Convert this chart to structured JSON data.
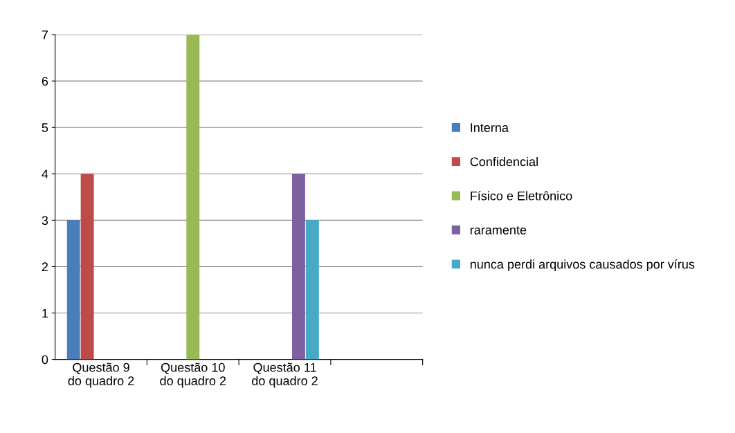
{
  "chart_data": {
    "type": "bar",
    "categories": [
      "Questão 9\ndo quadro 2",
      "Questão 10\ndo quadro 2",
      "Questão 11\ndo quadro 2",
      null
    ],
    "series": [
      {
        "name": "Interna",
        "color": "#4a7ebb",
        "values": [
          3,
          null,
          null,
          null
        ]
      },
      {
        "name": "Confidencial",
        "color": "#be4b48",
        "values": [
          4,
          null,
          null,
          null
        ]
      },
      {
        "name": "Físico e Eletrônico",
        "color": "#98b954",
        "values": [
          null,
          7,
          null,
          null
        ]
      },
      {
        "name": "raramente",
        "color": "#7d60a0",
        "values": [
          null,
          null,
          4,
          null
        ]
      },
      {
        "name": "nunca perdi arquivos causados por vírus",
        "color": "#46aac5",
        "values": [
          null,
          null,
          3,
          null
        ]
      }
    ],
    "ylim": [
      0,
      7
    ],
    "yticks": [
      0,
      1,
      2,
      3,
      4,
      5,
      6,
      7
    ],
    "grid": "y",
    "legend": "right"
  }
}
